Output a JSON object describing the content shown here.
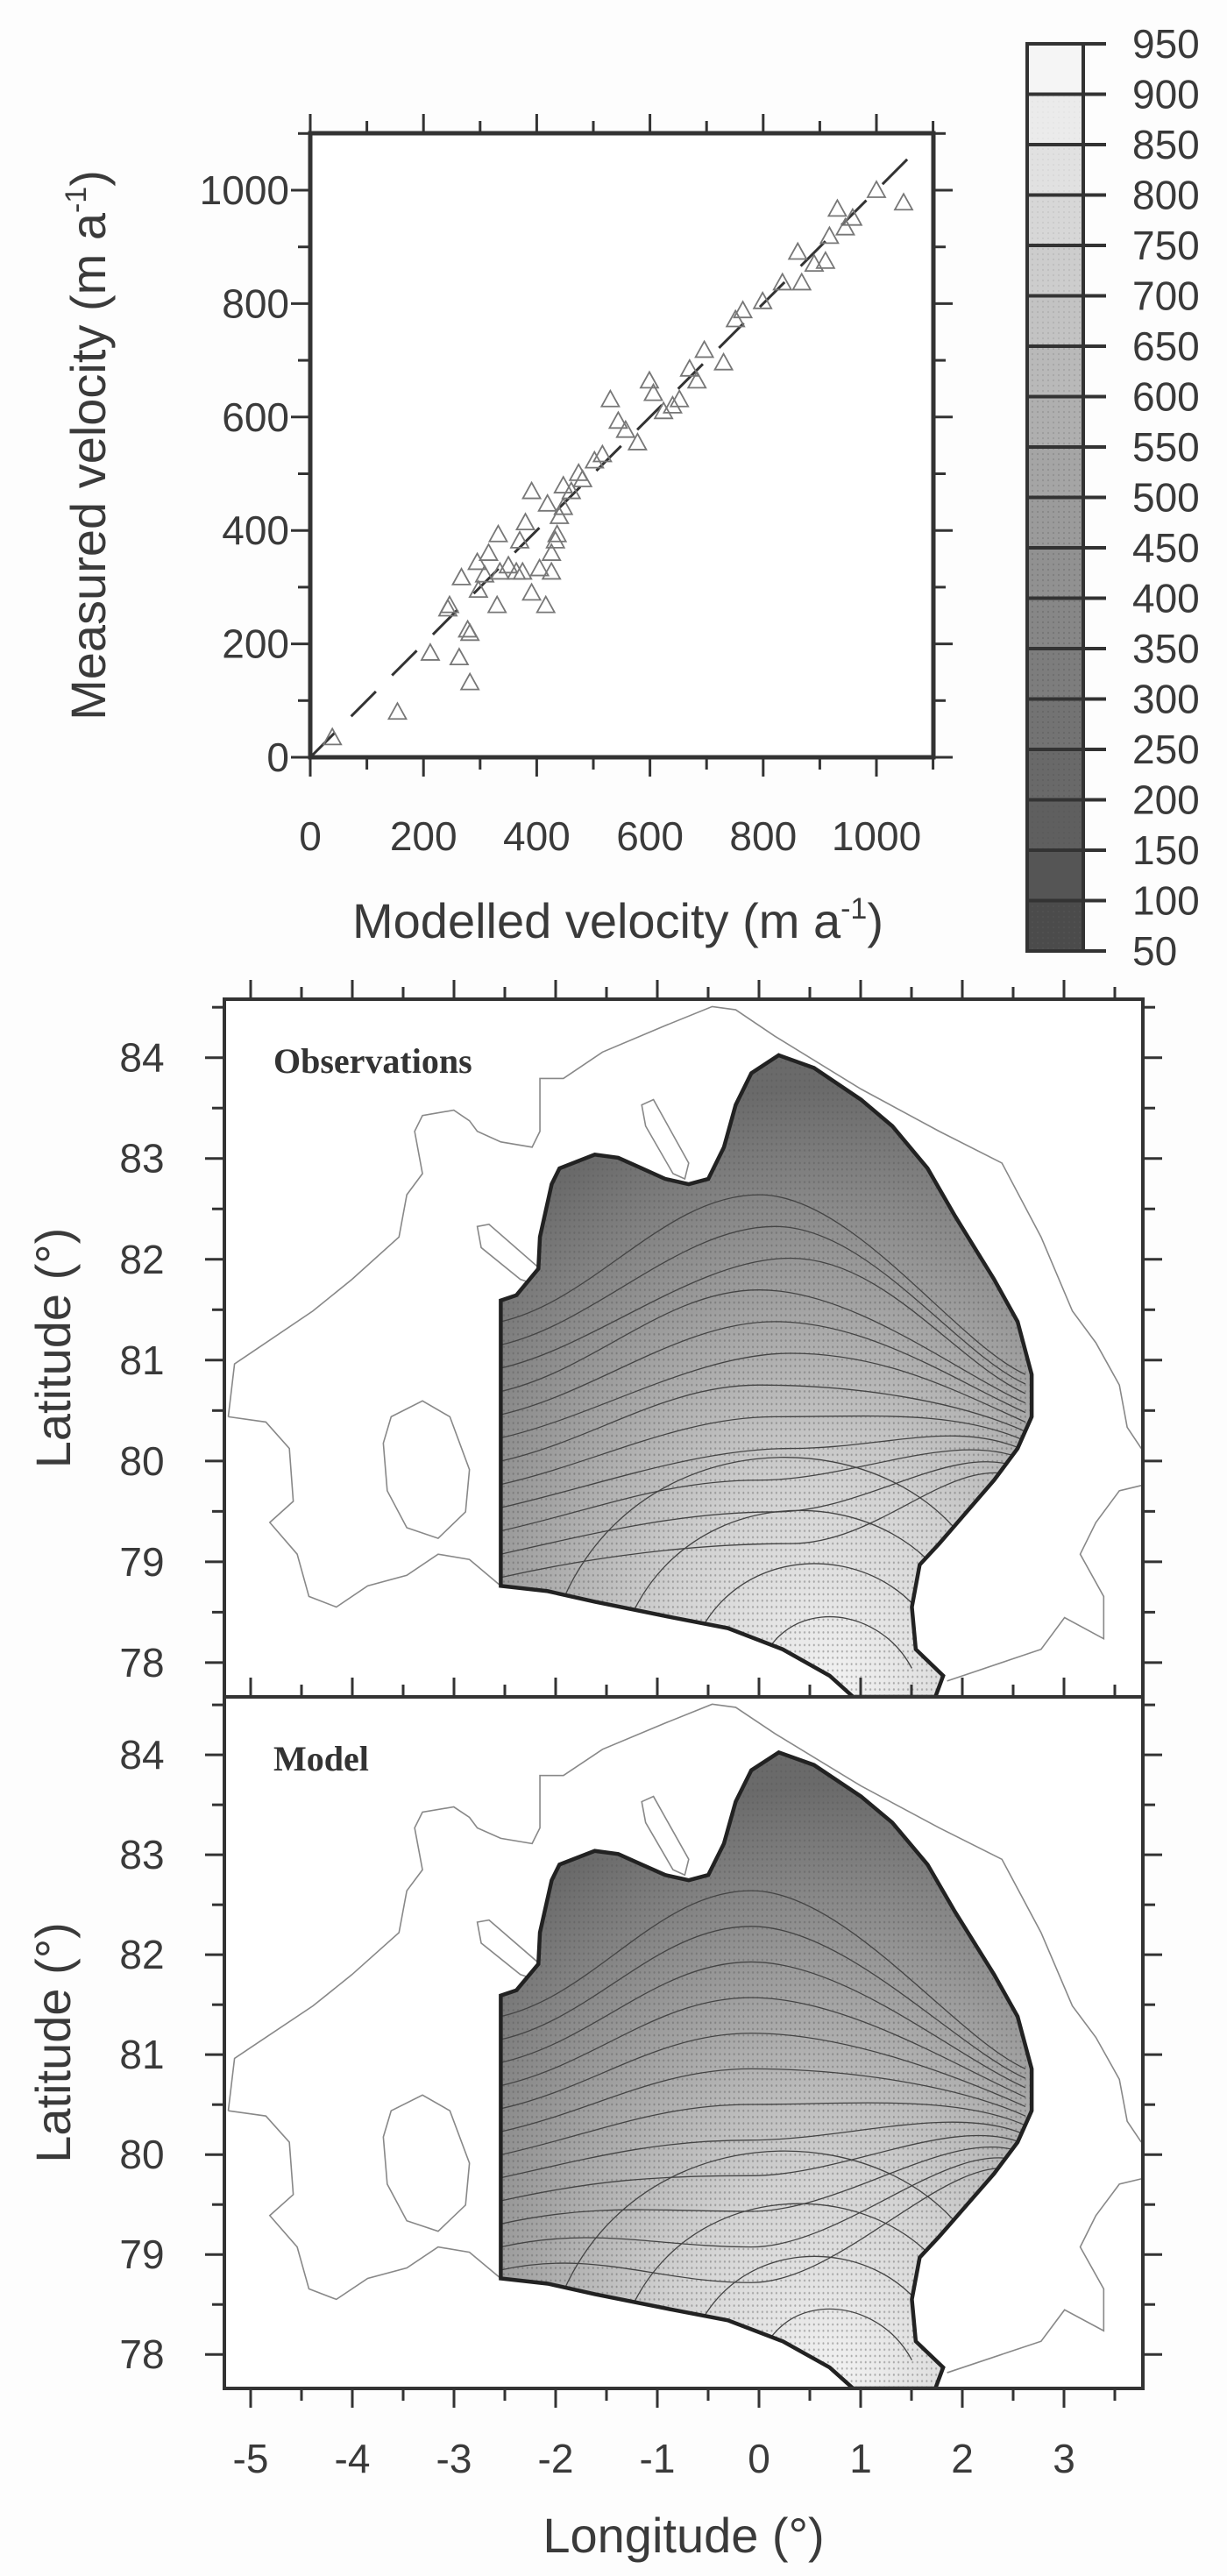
{
  "chart_data": [
    {
      "type": "scatter",
      "title": "",
      "xlabel": "Modelled velocity (m a",
      "ylabel": "Measured velocity (m a",
      "unit_superscript": "-1",
      "unit_close": ")",
      "xlim": [
        0,
        1100
      ],
      "ylim": [
        0,
        1100
      ],
      "xticks": [
        0,
        200,
        400,
        600,
        800,
        1000
      ],
      "yticks": [
        0,
        200,
        400,
        600,
        800,
        1000
      ],
      "marker": "triangle",
      "reference_line": "1:1 dashed",
      "points": [
        [
          39,
          35
        ],
        [
          154,
          80
        ],
        [
          212,
          184
        ],
        [
          263,
          176
        ],
        [
          282,
          132
        ],
        [
          243,
          262
        ],
        [
          267,
          317
        ],
        [
          278,
          225
        ],
        [
          295,
          344
        ],
        [
          308,
          322
        ],
        [
          332,
          393
        ],
        [
          335,
          327
        ],
        [
          330,
          268
        ],
        [
          364,
          327
        ],
        [
          375,
          327
        ],
        [
          391,
          290
        ],
        [
          416,
          268
        ],
        [
          405,
          333
        ],
        [
          426,
          360
        ],
        [
          436,
          393
        ],
        [
          440,
          425
        ],
        [
          391,
          469
        ],
        [
          419,
          447
        ],
        [
          447,
          479
        ],
        [
          474,
          501
        ],
        [
          502,
          523
        ],
        [
          530,
          631
        ],
        [
          544,
          593
        ],
        [
          578,
          555
        ],
        [
          599,
          664
        ],
        [
          606,
          642
        ],
        [
          640,
          620
        ],
        [
          670,
          685
        ],
        [
          683,
          664
        ],
        [
          696,
          718
        ],
        [
          730,
          696
        ],
        [
          764,
          788
        ],
        [
          799,
          804
        ],
        [
          861,
          891
        ],
        [
          868,
          837
        ],
        [
          910,
          875
        ],
        [
          917,
          919
        ],
        [
          931,
          967
        ],
        [
          958,
          951
        ],
        [
          1000,
          1000
        ],
        [
          1048,
          978
        ],
        [
          246,
          268
        ],
        [
          282,
          219
        ],
        [
          297,
          295
        ],
        [
          315,
          360
        ],
        [
          350,
          338
        ],
        [
          370,
          382
        ],
        [
          380,
          414
        ],
        [
          426,
          327
        ],
        [
          433,
          382
        ],
        [
          447,
          441
        ],
        [
          461,
          469
        ],
        [
          481,
          490
        ],
        [
          516,
          534
        ],
        [
          557,
          577
        ],
        [
          624,
          610
        ],
        [
          652,
          631
        ],
        [
          751,
          772
        ],
        [
          834,
          837
        ],
        [
          890,
          870
        ],
        [
          945,
          934
        ]
      ]
    },
    {
      "type": "colorbar",
      "labels": [
        "950",
        "900",
        "850",
        "800",
        "750",
        "700",
        "650",
        "600",
        "550",
        "500",
        "450",
        "400",
        "350",
        "300",
        "250",
        "200",
        "150",
        "100",
        "50"
      ]
    },
    {
      "type": "heatmap",
      "panel_label": "Observations",
      "ylabel": "Latitude (°)",
      "yticks": [
        "84",
        "83",
        "82",
        "81",
        "80",
        "79",
        "78"
      ],
      "xlim": [
        -5.25,
        3.8
      ],
      "ylim": [
        77.65,
        84.6
      ]
    },
    {
      "type": "heatmap",
      "panel_label": "Model",
      "ylabel": "Latitude (°)",
      "xlabel": "Longitude (°)",
      "yticks": [
        "84",
        "83",
        "82",
        "81",
        "80",
        "79",
        "78"
      ],
      "xticks": [
        "-5",
        "-4",
        "-3",
        "-2",
        "-1",
        "0",
        "1",
        "2",
        "3"
      ],
      "xlim": [
        -5.25,
        3.8
      ],
      "ylim": [
        77.65,
        84.6
      ]
    }
  ]
}
